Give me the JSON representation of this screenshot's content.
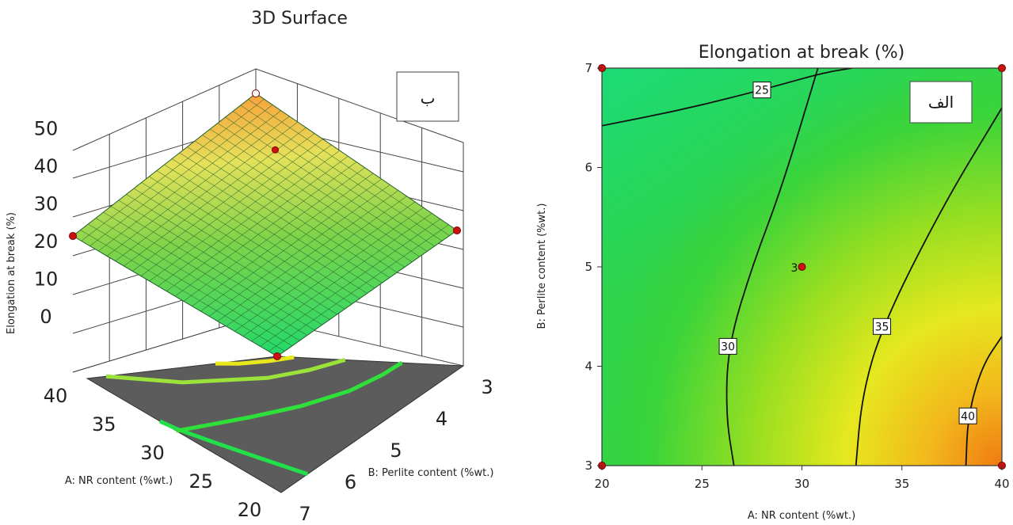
{
  "chart_data": [
    {
      "type": "surface",
      "title": "3D Surface",
      "xlabel": "A: NR content (%wt.)",
      "ylabel": "B: Perlite content (%wt.)",
      "zlabel": "Elongation at break (%)",
      "x_ticks": [
        "20",
        "25",
        "30",
        "35",
        "40"
      ],
      "y_ticks": [
        "3",
        "4",
        "5",
        "6",
        "7"
      ],
      "z_ticks": [
        "0",
        "10",
        "20",
        "30",
        "40",
        "50"
      ],
      "xlim": [
        20,
        40
      ],
      "ylim": [
        3,
        7
      ],
      "zlim": [
        0,
        50
      ],
      "corner_points": [
        {
          "x": 20,
          "y": 3,
          "z": 26
        },
        {
          "x": 40,
          "y": 3,
          "z": 44
        },
        {
          "x": 20,
          "y": 7,
          "z": 22
        },
        {
          "x": 40,
          "y": 7,
          "z": 26
        }
      ],
      "center_point": {
        "x": 30,
        "y": 5,
        "z": 29
      },
      "annotation": "ب",
      "floor_color": "#5c5c5c"
    },
    {
      "type": "contour",
      "title": "Elongation at break (%)",
      "xlabel": "A: NR content (%wt.)",
      "ylabel": "B: Perlite content (%wt.)",
      "x_ticks": [
        "20",
        "25",
        "30",
        "35",
        "40"
      ],
      "y_ticks": [
        "3",
        "4",
        "5",
        "6",
        "7"
      ],
      "xlim": [
        20,
        40
      ],
      "ylim": [
        3,
        7
      ],
      "contours": [
        {
          "level": "25",
          "points": [
            [
              20,
              6.42
            ],
            [
              24,
              6.58
            ],
            [
              28,
              6.78
            ],
            [
              31,
              6.95
            ],
            [
              32.5,
              7.0
            ]
          ]
        },
        {
          "level": "30",
          "points": [
            [
              30.8,
              7.0
            ],
            [
              29,
              5.8
            ],
            [
              27.5,
              5.0
            ],
            [
              26.3,
              4.2
            ],
            [
              26.2,
              3.5
            ],
            [
              26.6,
              3.0
            ]
          ]
        },
        {
          "level": "35",
          "points": [
            [
              40,
              6.6
            ],
            [
              37,
              5.6
            ],
            [
              34,
              4.4
            ],
            [
              33,
              3.7
            ],
            [
              32.7,
              3.0
            ]
          ]
        },
        {
          "level": "40",
          "points": [
            [
              40,
              4.3
            ],
            [
              39,
              4.0
            ],
            [
              38.3,
              3.5
            ],
            [
              38.2,
              3.0
            ]
          ]
        }
      ],
      "design_points": [
        {
          "x": 20,
          "y": 3
        },
        {
          "x": 40,
          "y": 3
        },
        {
          "x": 20,
          "y": 7
        },
        {
          "x": 40,
          "y": 7
        },
        {
          "x": 30,
          "y": 5
        }
      ],
      "center_point_label": "3",
      "annotation": "الف"
    }
  ]
}
